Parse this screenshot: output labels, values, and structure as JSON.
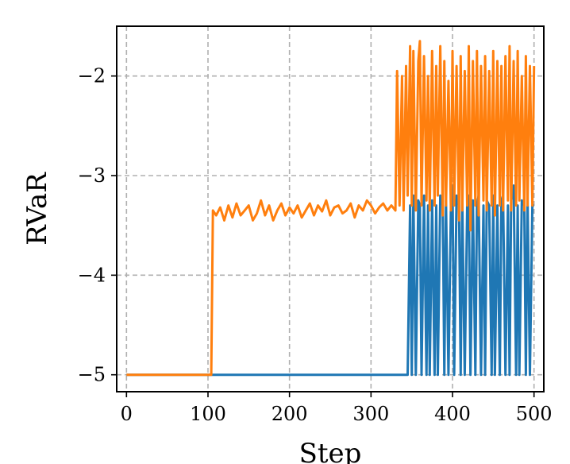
{
  "chart_data": {
    "type": "line",
    "xlabel": "Step",
    "ylabel": "RVaR",
    "xlim": [
      -12,
      512
    ],
    "ylim": [
      -5.17,
      -1.5
    ],
    "xticks": [
      0,
      100,
      200,
      300,
      400,
      500
    ],
    "yticks": [
      -5,
      -4,
      -3,
      -2
    ],
    "xtick_labels": [
      "0",
      "100",
      "200",
      "300",
      "400",
      "500"
    ],
    "ytick_labels": [
      "−5",
      "−4",
      "−3",
      "−2"
    ],
    "grid": true,
    "legend": "none",
    "series": [
      {
        "color": "#1f77b4",
        "x": [
          0,
          100,
          105,
          110,
          340,
          345,
          348,
          350,
          352,
          355,
          358,
          360,
          362,
          365,
          368,
          370,
          372,
          375,
          378,
          380,
          382,
          385,
          388,
          390,
          392,
          395,
          398,
          400,
          402,
          405,
          408,
          410,
          412,
          415,
          418,
          420,
          422,
          425,
          428,
          430,
          432,
          435,
          438,
          440,
          442,
          445,
          448,
          450,
          452,
          455,
          458,
          460,
          462,
          465,
          468,
          470,
          472,
          475,
          478,
          480,
          482,
          485,
          488,
          490,
          492,
          495,
          498,
          500
        ],
        "y": [
          -5,
          -5,
          -5,
          -5,
          -5,
          -5,
          -3.3,
          -5,
          -3.2,
          -5,
          -3.25,
          -3.3,
          -5,
          -3.2,
          -5,
          -3.3,
          -5,
          -3.25,
          -5,
          -3.3,
          -5,
          -3.2,
          -3.3,
          -5,
          -3.25,
          -5,
          -3.3,
          -3.1,
          -5,
          -3.2,
          -3.3,
          -5,
          -3.25,
          -5,
          -3.3,
          -3.2,
          -5,
          -3.25,
          -5,
          -3.3,
          -3.2,
          -5,
          -3.3,
          -5,
          -3.25,
          -3.3,
          -5,
          -3.2,
          -5,
          -3.3,
          -5,
          -3.25,
          -3.2,
          -5,
          -3.3,
          -5,
          -3.25,
          -3.1,
          -5,
          -3.3,
          -5,
          -3.25,
          -3.3,
          -5,
          -3.2,
          -5,
          -3.3,
          -3.3
        ]
      },
      {
        "color": "#ff7f0e",
        "x": [
          0,
          100,
          104,
          106,
          110,
          115,
          120,
          125,
          130,
          135,
          140,
          145,
          150,
          155,
          160,
          165,
          170,
          175,
          180,
          185,
          190,
          195,
          200,
          205,
          210,
          215,
          220,
          225,
          230,
          235,
          240,
          245,
          250,
          255,
          260,
          265,
          270,
          275,
          280,
          285,
          290,
          295,
          300,
          305,
          310,
          315,
          320,
          325,
          330,
          332,
          335,
          338,
          340,
          343,
          345,
          348,
          350,
          352,
          355,
          358,
          360,
          362,
          365,
          368,
          370,
          372,
          375,
          378,
          380,
          382,
          385,
          388,
          390,
          392,
          395,
          398,
          400,
          402,
          405,
          408,
          410,
          412,
          415,
          418,
          420,
          422,
          425,
          428,
          430,
          432,
          435,
          438,
          440,
          442,
          445,
          448,
          450,
          452,
          455,
          458,
          460,
          462,
          465,
          468,
          470,
          472,
          475,
          478,
          480,
          482,
          485,
          488,
          490,
          492,
          495,
          498,
          500
        ],
        "y": [
          -5,
          -5,
          -5,
          -3.35,
          -3.4,
          -3.32,
          -3.45,
          -3.3,
          -3.42,
          -3.28,
          -3.4,
          -3.35,
          -3.3,
          -3.45,
          -3.38,
          -3.25,
          -3.4,
          -3.3,
          -3.45,
          -3.35,
          -3.28,
          -3.4,
          -3.32,
          -3.38,
          -3.3,
          -3.42,
          -3.35,
          -3.28,
          -3.4,
          -3.3,
          -3.36,
          -3.25,
          -3.4,
          -3.32,
          -3.3,
          -3.38,
          -3.35,
          -3.28,
          -3.42,
          -3.3,
          -3.35,
          -3.25,
          -3.3,
          -3.38,
          -3.32,
          -3.28,
          -3.35,
          -3.3,
          -3.35,
          -1.95,
          -3.3,
          -2.0,
          -3.35,
          -1.9,
          -3.2,
          -1.7,
          -3.3,
          -1.75,
          -3.35,
          -1.85,
          -1.65,
          -3.3,
          -1.8,
          -3.25,
          -2.0,
          -3.35,
          -1.75,
          -3.3,
          -1.9,
          -3.2,
          -1.7,
          -3.4,
          -1.85,
          -3.3,
          -2.05,
          -3.35,
          -1.75,
          -3.3,
          -1.9,
          -3.45,
          -1.8,
          -3.35,
          -1.95,
          -3.3,
          -1.7,
          -3.55,
          -1.85,
          -3.3,
          -1.75,
          -3.4,
          -1.9,
          -3.25,
          -1.8,
          -3.35,
          -1.95,
          -3.3,
          -1.75,
          -3.4,
          -1.85,
          -3.3,
          -1.9,
          -3.35,
          -1.8,
          -3.25,
          -1.7,
          -3.35,
          -1.85,
          -3.3,
          -1.75,
          -3.25,
          -2.0,
          -3.35,
          -1.8,
          -3.3,
          -1.9,
          -3.3,
          -1.9
        ]
      }
    ]
  }
}
